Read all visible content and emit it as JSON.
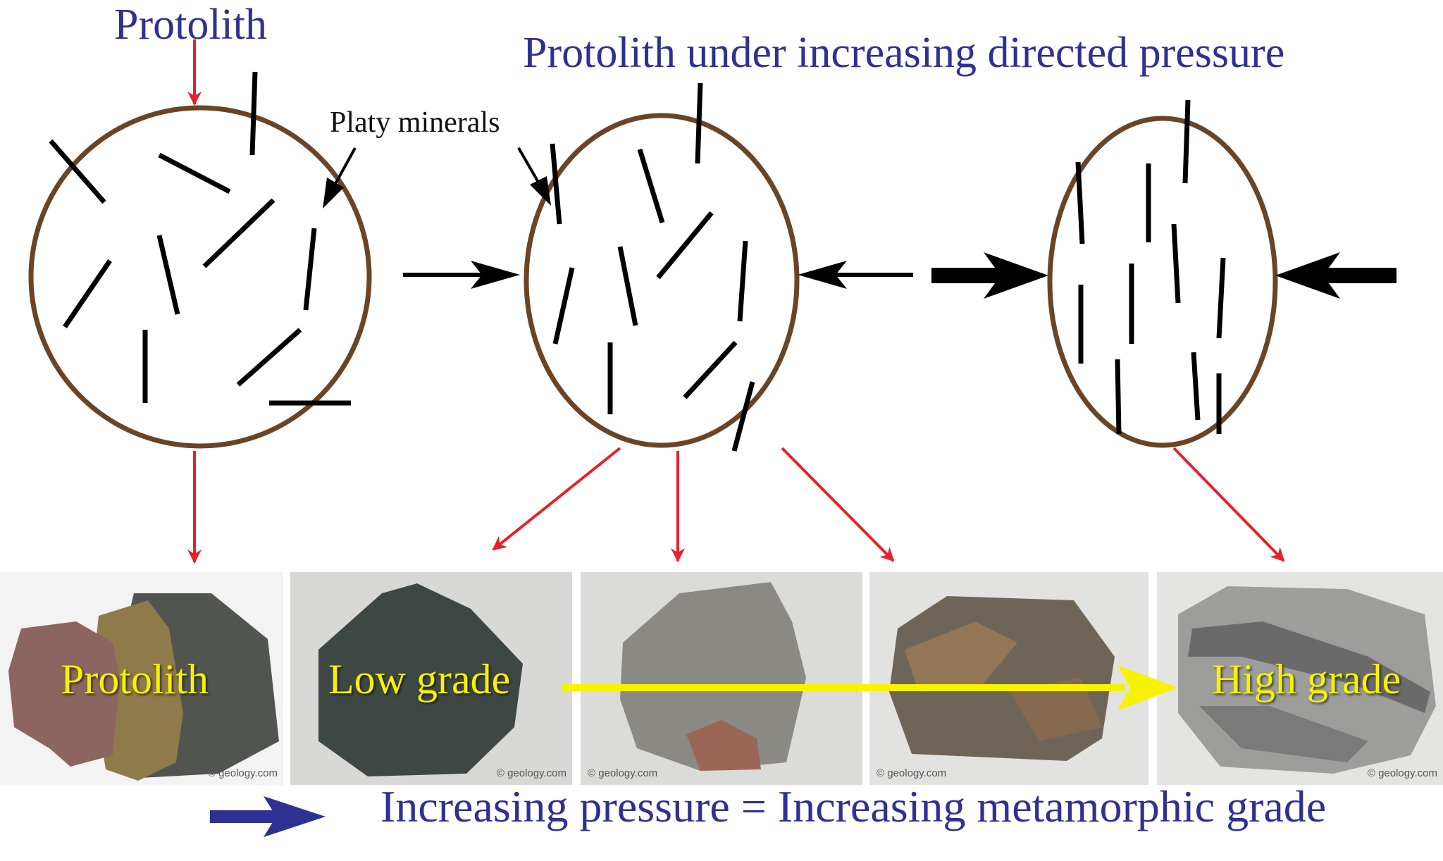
{
  "titles": {
    "protolith": "Protolith",
    "pressure": "Protolith under increasing directed pressure"
  },
  "annotations": {
    "platy_minerals": "Platy minerals"
  },
  "photos": [
    {
      "label": "Protolith",
      "copyright": "© geology.com"
    },
    {
      "label": "Low grade",
      "copyright": "© geology.com"
    },
    {
      "label": "",
      "copyright": "© geology.com"
    },
    {
      "label": "",
      "copyright": "© geology.com"
    },
    {
      "label": "High grade",
      "copyright": "© geology.com"
    }
  ],
  "caption": "Increasing pressure = Increasing metamorphic grade",
  "colors": {
    "title_blue": "#2e3192",
    "circle_brown": "#6b4426",
    "red_arrow": "#e8202a",
    "label_yellow": "#f7f200",
    "caption_arrow_blue": "#2e3192"
  }
}
